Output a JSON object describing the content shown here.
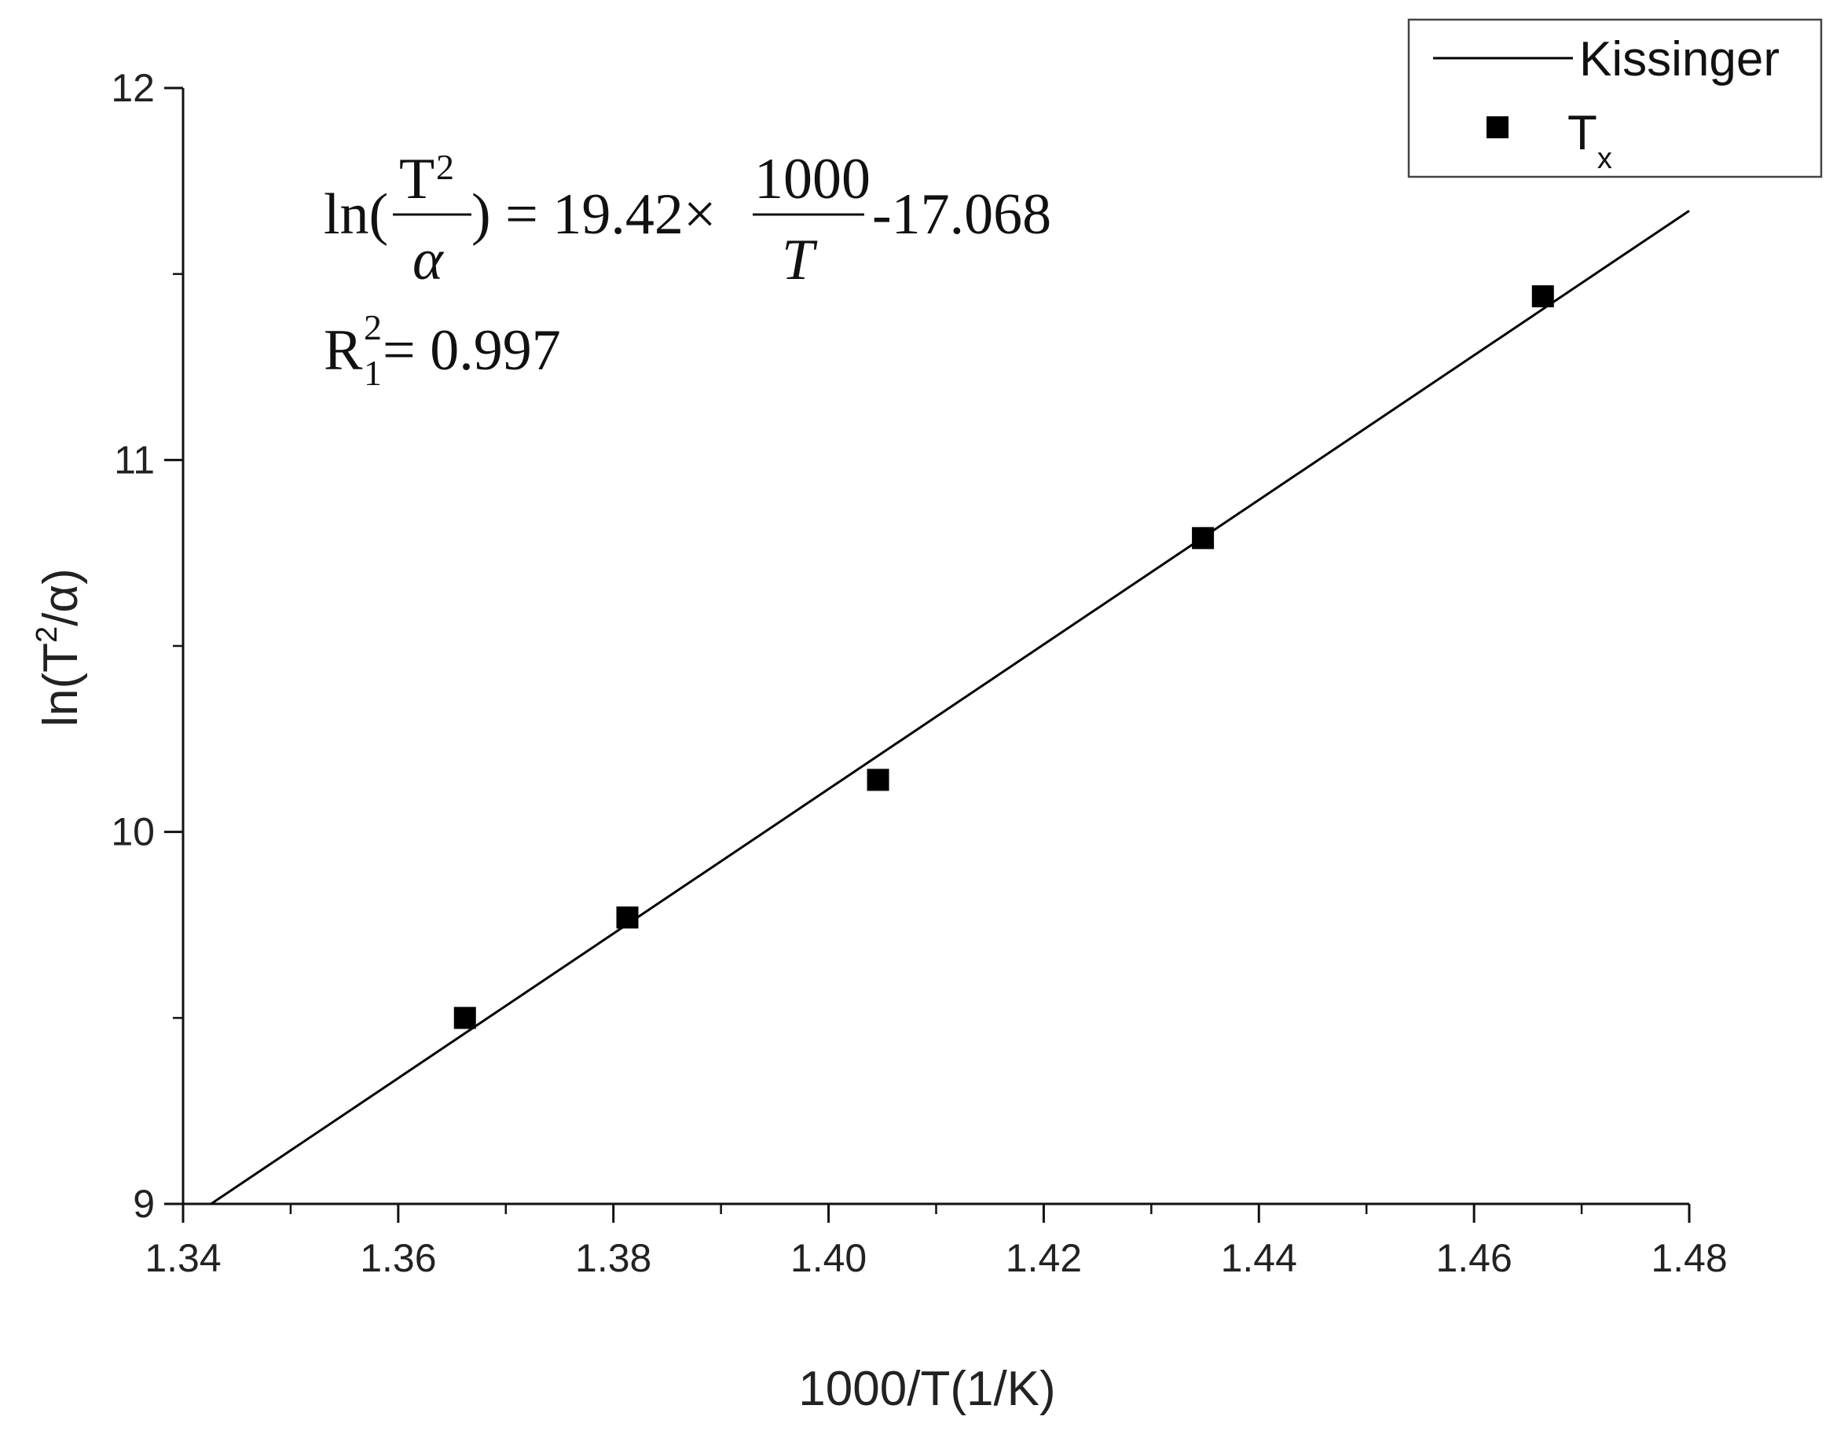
{
  "chart_data": {
    "type": "scatter",
    "xlabel": "1000/T(1/K)",
    "ylabel": {
      "prefix": "ln(T",
      "sup": "2",
      "suffix": "/α)"
    },
    "xlim": [
      1.34,
      1.48
    ],
    "ylim": [
      9,
      12
    ],
    "x_ticks": [
      "1.34",
      "1.36",
      "1.38",
      "1.40",
      "1.42",
      "1.44",
      "1.46",
      "1.48"
    ],
    "x_tick_values": [
      1.34,
      1.36,
      1.38,
      1.4,
      1.42,
      1.44,
      1.46,
      1.48
    ],
    "x_minor_step": 0.01,
    "y_ticks": [
      "9",
      "10",
      "11",
      "12"
    ],
    "y_tick_values": [
      9,
      10,
      11,
      12
    ],
    "y_minor_step": 0.5,
    "grid": false,
    "legend_position": "top-right",
    "series": [
      {
        "name": "Tx",
        "name_main": "T",
        "name_sub": "x",
        "type": "scatter",
        "marker": "square",
        "color": "#000000",
        "x": [
          1.3662,
          1.3813,
          1.4046,
          1.4348,
          1.4664
        ],
        "y": [
          9.5,
          9.77,
          10.14,
          10.79,
          11.44
        ]
      },
      {
        "name": "Kissinger",
        "type": "line",
        "color": "#000000",
        "slope": 19.42,
        "intercept": -17.068,
        "x": [
          1.3426,
          1.48
        ],
        "y": [
          9.0,
          11.67
        ]
      }
    ],
    "annotations": {
      "equation": {
        "ln_open": "ln(",
        "frac1_num": "T",
        "frac1_num_sup": "2",
        "frac1_den": "α",
        "close_eq": ") = 19.42×",
        "frac2_num": "1000",
        "frac2_den": "T",
        "tail": "-17.068"
      },
      "r_squared": {
        "base": "R",
        "sup": "2",
        "sub": "1",
        "rest": " = 0.997"
      }
    }
  }
}
